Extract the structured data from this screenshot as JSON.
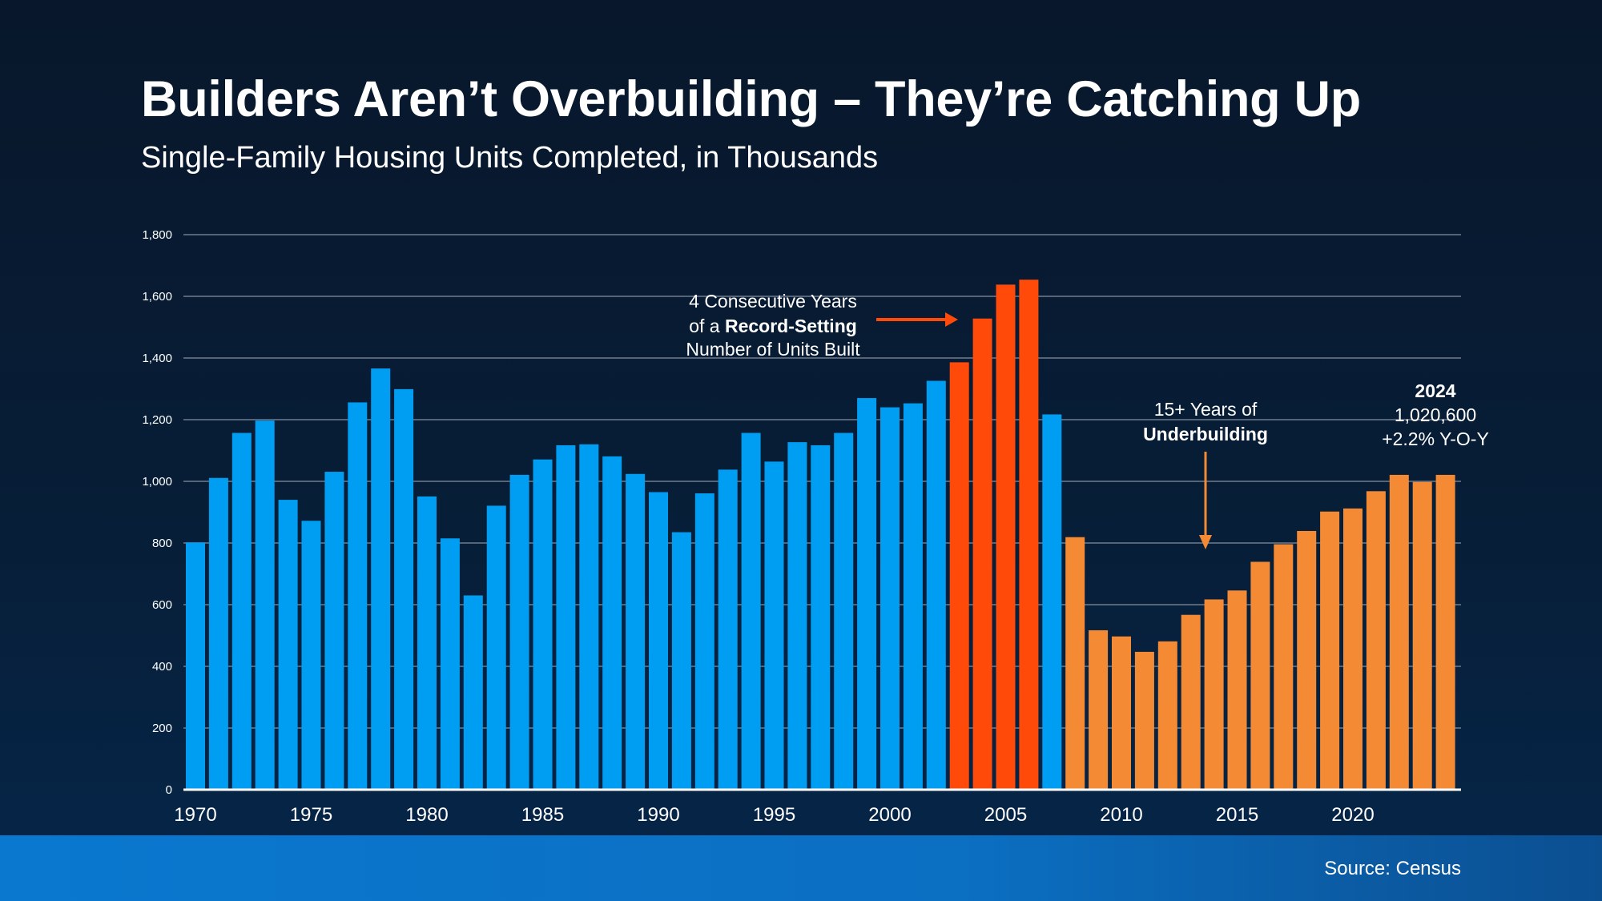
{
  "title": "Builders Aren’t Overbuilding – They’re Catching Up",
  "subtitle": "Single-Family Housing Units Completed, in Thousands",
  "source": "Source: Census",
  "annotations": {
    "record": {
      "line1": "4 Consecutive Years",
      "line2_prefix": "of a ",
      "line2_bold": "Record-Setting",
      "line3": "Number of Units Built"
    },
    "underbuilding": {
      "line1": "15+ Years of",
      "line2": "Underbuilding"
    },
    "latest": {
      "year": "2024",
      "value": "1,020,600",
      "change": "+2.2% Y-O-Y"
    }
  },
  "chart_data": {
    "type": "bar",
    "title": "Single-Family Housing Units Completed, in Thousands",
    "xlabel": "",
    "ylabel": "",
    "ylim": [
      0,
      1800
    ],
    "yticks": [
      "0",
      "200",
      "400",
      "600",
      "800",
      "1,000",
      "1,200",
      "1,400",
      "1,600",
      "1,800"
    ],
    "xtick_labels": [
      "1970",
      "1975",
      "1980",
      "1985",
      "1990",
      "1995",
      "2000",
      "2005",
      "2010",
      "2015",
      "2020"
    ],
    "grid": true,
    "colors": {
      "default": "#009ef2",
      "record": "#ff4a0a",
      "underbuilding": "#f58a35"
    },
    "record_years": [
      2003,
      2004,
      2005,
      2006
    ],
    "underbuilding_from": 2008,
    "categories": [
      1970,
      1971,
      1972,
      1973,
      1974,
      1975,
      1976,
      1977,
      1978,
      1979,
      1980,
      1981,
      1982,
      1983,
      1984,
      1985,
      1986,
      1987,
      1988,
      1989,
      1990,
      1991,
      1992,
      1993,
      1994,
      1995,
      1996,
      1997,
      1998,
      1999,
      2000,
      2001,
      2002,
      2003,
      2004,
      2005,
      2006,
      2007,
      2008,
      2009,
      2010,
      2011,
      2012,
      2013,
      2014,
      2015,
      2016,
      2017,
      2018,
      2019,
      2020,
      2021,
      2022,
      2023,
      2024
    ],
    "values": [
      802,
      1011,
      1157,
      1197,
      940,
      872,
      1031,
      1256,
      1366,
      1299,
      951,
      815,
      630,
      921,
      1021,
      1071,
      1117,
      1120,
      1081,
      1024,
      965,
      835,
      961,
      1038,
      1157,
      1064,
      1127,
      1117,
      1157,
      1270,
      1240,
      1253,
      1326,
      1386,
      1528,
      1638,
      1654,
      1217,
      819,
      517,
      497,
      447,
      481,
      567,
      617,
      646,
      739,
      796,
      839,
      902,
      912,
      968,
      1021,
      998,
      1021
    ]
  }
}
